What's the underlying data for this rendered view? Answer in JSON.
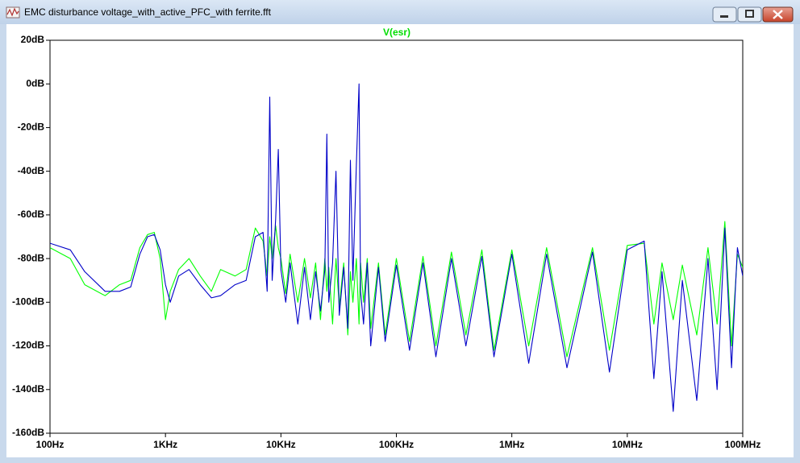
{
  "window": {
    "title": "EMC disturbance voltage_with_active_PFC_with ferrite.fft"
  },
  "chart_data": {
    "type": "line",
    "x": [
      100,
      150,
      200,
      300,
      400,
      500,
      600,
      700,
      800,
      900,
      1000,
      1100,
      1300,
      1600,
      2000,
      2500,
      3000,
      4000,
      5000,
      6000,
      7000,
      7600,
      8000,
      8400,
      9000,
      9500,
      10000,
      11000,
      12000,
      14000,
      16000,
      18000,
      20000,
      22000,
      24000,
      25000,
      26000,
      28000,
      30000,
      32000,
      35000,
      38000,
      40000,
      42000,
      45000,
      47500,
      49000,
      52000,
      56000,
      60000,
      70000,
      80000,
      100000,
      130000,
      170000,
      220000,
      300000,
      400000,
      550000,
      700000,
      1000000,
      1400000,
      2000000,
      3000000,
      5000000,
      7000000,
      10000000,
      14000000,
      17000000,
      20000000,
      25000000,
      30000000,
      40000000,
      50000000,
      60000000,
      70000000,
      80000000,
      90000000,
      100000000
    ],
    "series": [
      {
        "name": "V(esr)",
        "color": "#00ff00",
        "values": [
          -75,
          -80,
          -92,
          -97,
          -92,
          -90,
          -75,
          -69,
          -68,
          -80,
          -108,
          -95,
          -85,
          -80,
          -88,
          -95,
          -85,
          -88,
          -85,
          -66,
          -72,
          -88,
          -70,
          -80,
          -65,
          -75,
          -80,
          -96,
          -78,
          -100,
          -80,
          -98,
          -82,
          -108,
          -80,
          -95,
          -84,
          -110,
          -80,
          -102,
          -82,
          -115,
          -86,
          -100,
          -80,
          -110,
          -82,
          -100,
          -80,
          -112,
          -82,
          -115,
          -80,
          -118,
          -79,
          -120,
          -77,
          -115,
          -76,
          -122,
          -76,
          -120,
          -75,
          -125,
          -75,
          -122,
          -74,
          -73,
          -110,
          -82,
          -108,
          -83,
          -115,
          -75,
          -110,
          -63,
          -120,
          -78,
          -84
        ]
      },
      {
        "color": "#0000c8",
        "values": [
          -73,
          -76,
          -86,
          -95,
          -95,
          -93,
          -78,
          -70,
          -69,
          -76,
          -92,
          -100,
          -88,
          -85,
          -92,
          -98,
          -97,
          -92,
          -90,
          -70,
          -68,
          -95,
          -6,
          -90,
          -62,
          -30,
          -85,
          -100,
          -82,
          -110,
          -84,
          -108,
          -86,
          -104,
          -85,
          -23,
          -100,
          -82,
          -40,
          -106,
          -84,
          -112,
          -35,
          -90,
          -37,
          0,
          -95,
          -110,
          -82,
          -120,
          -84,
          -118,
          -83,
          -122,
          -82,
          -125,
          -80,
          -120,
          -79,
          -125,
          -78,
          -128,
          -78,
          -130,
          -77,
          -132,
          -76,
          -72,
          -135,
          -86,
          -150,
          -90,
          -145,
          -80,
          -140,
          -66,
          -130,
          -75,
          -88
        ]
      }
    ],
    "xscale": "log",
    "xlim": [
      100,
      100000000
    ],
    "xticks": [
      {
        "value": 100,
        "label": "100Hz"
      },
      {
        "value": 1000,
        "label": "1KHz"
      },
      {
        "value": 10000,
        "label": "10KHz"
      },
      {
        "value": 100000,
        "label": "100KHz"
      },
      {
        "value": 1000000,
        "label": "1MHz"
      },
      {
        "value": 10000000,
        "label": "10MHz"
      },
      {
        "value": 100000000,
        "label": "100MHz"
      }
    ],
    "ylim": [
      -160,
      20
    ],
    "yticks": [
      {
        "value": 20,
        "label": "20dB"
      },
      {
        "value": 0,
        "label": "0dB"
      },
      {
        "value": -20,
        "label": "-20dB"
      },
      {
        "value": -40,
        "label": "-40dB"
      },
      {
        "value": -60,
        "label": "-60dB"
      },
      {
        "value": -80,
        "label": "-80dB"
      },
      {
        "value": -100,
        "label": "-100dB"
      },
      {
        "value": -120,
        "label": "-120dB"
      },
      {
        "value": -140,
        "label": "-140dB"
      },
      {
        "value": -160,
        "label": "-160dB"
      }
    ],
    "grid": false
  }
}
